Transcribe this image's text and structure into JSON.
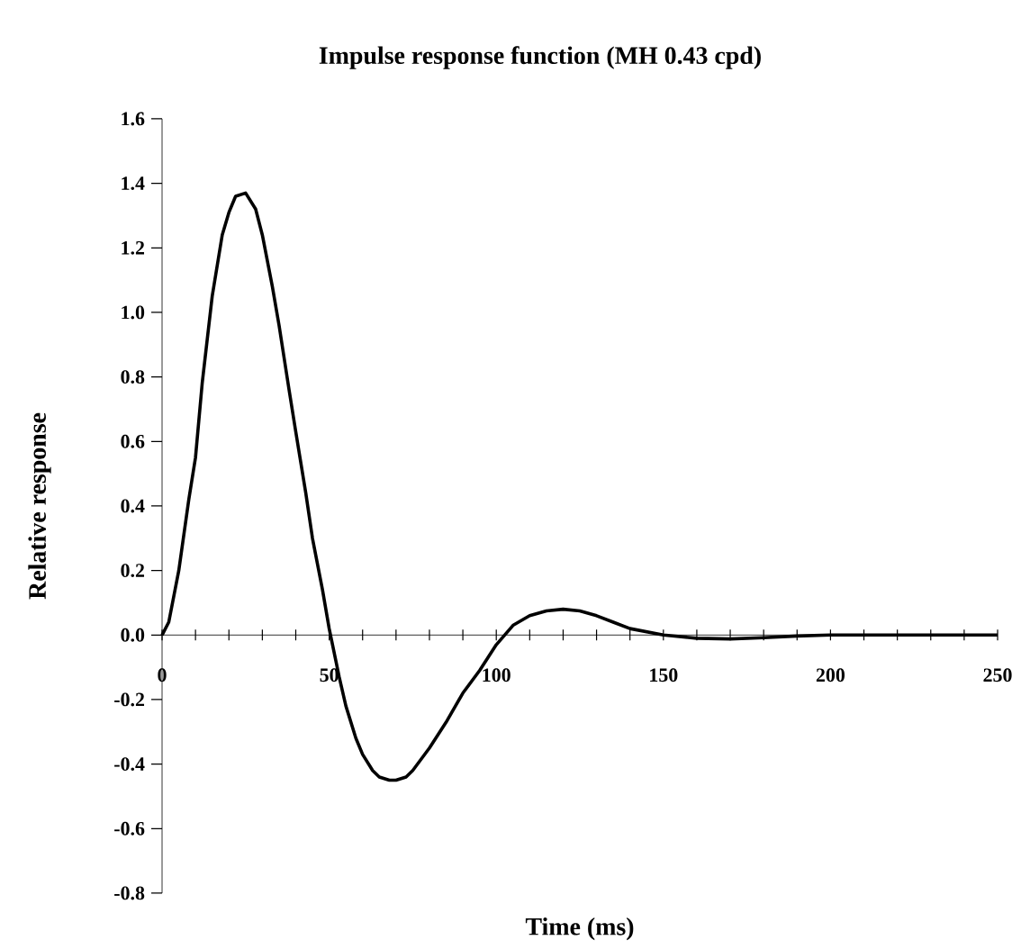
{
  "chart_data": {
    "type": "line",
    "title": "Impulse response function (MH 0.43 cpd)",
    "xlabel": "Time (ms)",
    "ylabel": "Relative response",
    "x": [
      0,
      2,
      5,
      8,
      10,
      12,
      15,
      18,
      20,
      22,
      25,
      28,
      30,
      33,
      35,
      38,
      40,
      43,
      45,
      48,
      50,
      53,
      55,
      58,
      60,
      63,
      65,
      68,
      70,
      73,
      75,
      80,
      85,
      90,
      95,
      100,
      105,
      110,
      115,
      120,
      125,
      130,
      135,
      140,
      145,
      150,
      160,
      170,
      180,
      190,
      200,
      225,
      250
    ],
    "values": [
      0,
      0.04,
      0.2,
      0.42,
      0.55,
      0.78,
      1.05,
      1.24,
      1.31,
      1.36,
      1.37,
      1.32,
      1.24,
      1.08,
      0.96,
      0.76,
      0.63,
      0.44,
      0.3,
      0.14,
      0.02,
      -0.13,
      -0.22,
      -0.32,
      -0.37,
      -0.42,
      -0.44,
      -0.45,
      -0.45,
      -0.44,
      -0.42,
      -0.35,
      -0.27,
      -0.18,
      -0.11,
      -0.03,
      0.03,
      0.06,
      0.075,
      0.08,
      0.075,
      0.06,
      0.04,
      0.02,
      0.01,
      0,
      -0.01,
      -0.012,
      -0.008,
      -0.003,
      0,
      0,
      0
    ],
    "color": "#000000",
    "marker": "none",
    "xlim": [
      0,
      250
    ],
    "ylim": [
      -0.8,
      1.6
    ],
    "xticks": [
      0,
      50,
      100,
      150,
      200,
      250
    ],
    "yticks": [
      {
        "value": -0.8,
        "label": "-0.8"
      },
      {
        "value": -0.6,
        "label": "-0.6"
      },
      {
        "value": -0.4,
        "label": "-0.4"
      },
      {
        "value": -0.2,
        "label": "-0.2"
      },
      {
        "value": 0,
        "label": "0.0"
      },
      {
        "value": 0.2,
        "label": "0.2"
      },
      {
        "value": 0.4,
        "label": "0.4"
      },
      {
        "value": 0.6,
        "label": "0.6"
      },
      {
        "value": 0.8,
        "label": "0.8"
      },
      {
        "value": 1,
        "label": "1.0"
      },
      {
        "value": 1.2,
        "label": "1.2"
      },
      {
        "value": 1.4,
        "label": "1.4"
      },
      {
        "value": 1.6,
        "label": "1.6"
      }
    ]
  }
}
